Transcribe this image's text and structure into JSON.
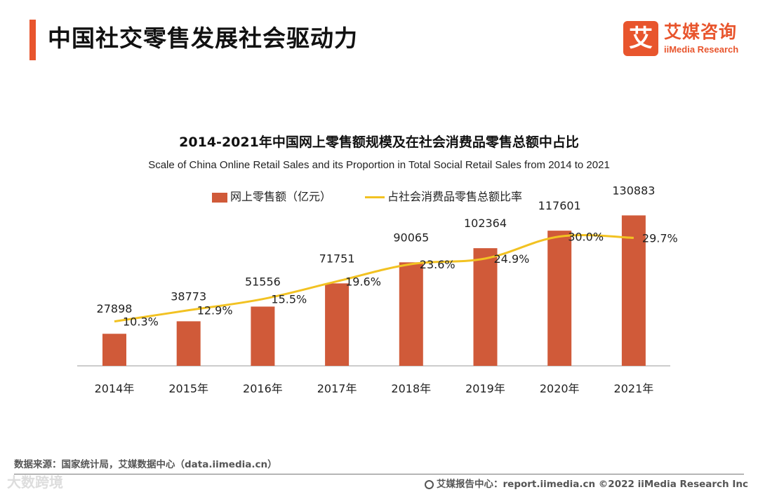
{
  "header": {
    "title": "中国社交零售发展社会驱动力",
    "logo_mark": "艾",
    "logo_cn": "艾媒咨询",
    "logo_en": "iiMedia Research"
  },
  "chart_data": {
    "type": "bar",
    "title": "2014-2021年中国网上零售额规模及在社会消费品零售总额中占比",
    "subtitle": "Scale of China Online Retail Sales and its Proportion in Total Social Retail Sales from 2014 to 2021",
    "categories": [
      "2014年",
      "2015年",
      "2016年",
      "2017年",
      "2018年",
      "2019年",
      "2020年",
      "2021年"
    ],
    "series": [
      {
        "name": "网上零售额（亿元）",
        "type": "bar",
        "color": "#d05a39",
        "values": [
          27898,
          38773,
          51556,
          71751,
          90065,
          102364,
          117601,
          130883
        ],
        "labels": [
          "27898",
          "38773",
          "51556",
          "71751",
          "90065",
          "102364",
          "117601",
          "130883"
        ]
      },
      {
        "name": "占社会消费品零售总额比率",
        "type": "line",
        "color": "#f2c222",
        "values": [
          10.3,
          12.9,
          15.5,
          19.6,
          23.6,
          24.9,
          30.0,
          29.7
        ],
        "labels": [
          "10.3%",
          "12.9%",
          "15.5%",
          "19.6%",
          "23.6%",
          "24.9%",
          "30.0%",
          "29.7%"
        ]
      }
    ],
    "ylim_bar": [
      0,
      150000
    ],
    "ylim_line": [
      0,
      40
    ],
    "grid": false,
    "legend_position": "top-center"
  },
  "footer": {
    "source": "数据来源：国家统计局，艾媒数据中心（data.iimedia.cn）",
    "report": "艾媒报告中心：report.iimedia.cn  ©2022  iiMedia Research  Inc",
    "watermark": "大数跨境"
  }
}
